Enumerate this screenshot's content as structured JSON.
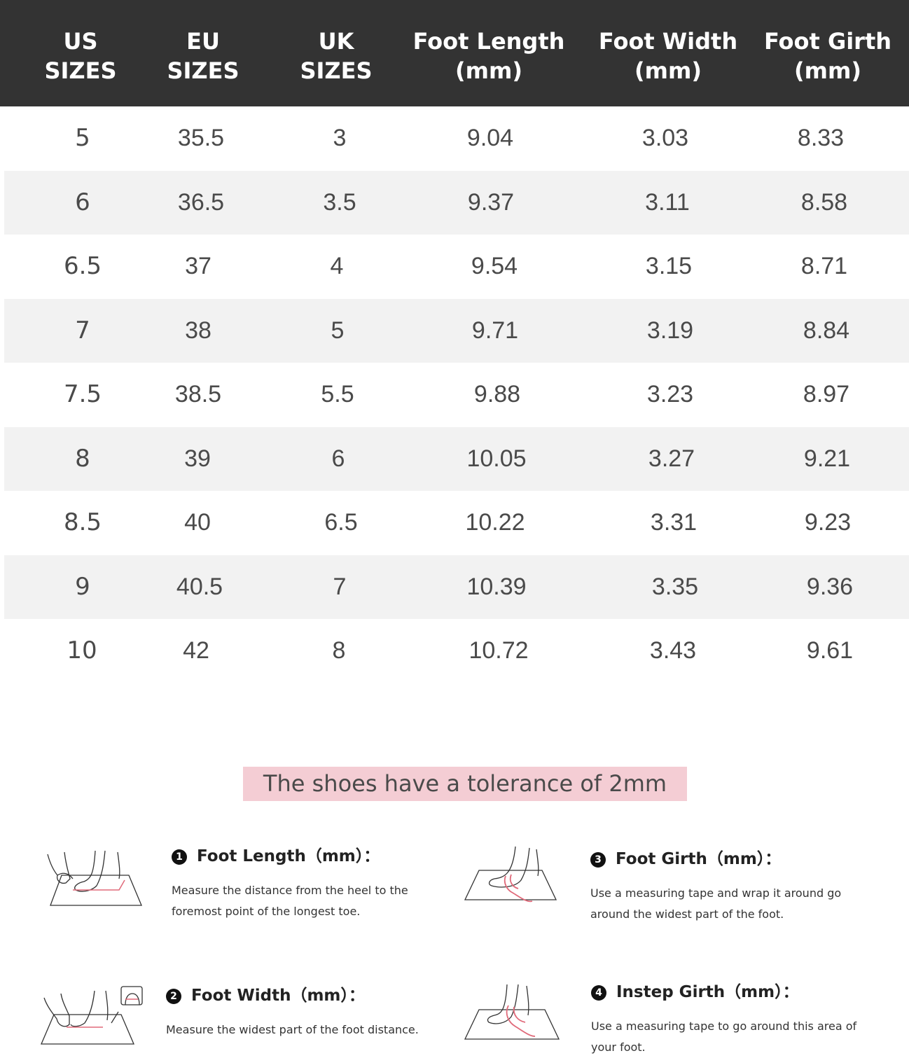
{
  "table": {
    "headers": [
      {
        "line1": "US",
        "line2": "SIZES"
      },
      {
        "line1": "EU",
        "line2": "SIZES"
      },
      {
        "line1": "UK",
        "line2": "SIZES"
      },
      {
        "line1": "Foot Length",
        "line2": "(mm)"
      },
      {
        "line1": "Foot Width",
        "line2": "(mm)"
      },
      {
        "line1": "Foot Girth",
        "line2": "(mm)"
      }
    ],
    "rows": [
      [
        "5",
        "35.5",
        "3",
        "9.04",
        "3.03",
        "8.33"
      ],
      [
        "6",
        "36.5",
        "3.5",
        "9.37",
        "3.11",
        "8.58"
      ],
      [
        "6.5",
        "37",
        "4",
        "9.54",
        "3.15",
        "8.71"
      ],
      [
        "7",
        "38",
        "5",
        "9.71",
        "3.19",
        "8.84"
      ],
      [
        "7.5",
        "38.5",
        "5.5",
        "9.88",
        "3.23",
        "8.97"
      ],
      [
        "8",
        "39",
        "6",
        "10.05",
        "3.27",
        "9.21"
      ],
      [
        "8.5",
        "40",
        "6.5",
        "10.22",
        "3.31",
        "9.23"
      ],
      [
        "9",
        "40.5",
        "7",
        "10.39",
        "3.35",
        "9.36"
      ],
      [
        "10",
        "42",
        "8",
        "10.72",
        "3.43",
        "9.61"
      ]
    ]
  },
  "tolerance_note": "The shoes have a tolerance of 2mm",
  "guides": [
    {
      "badge": "1",
      "title": "Foot Length（mm）：",
      "text": "Measure the distance from the heel to the foremost point of the longest toe.",
      "icon": "foot-length-illustration-icon"
    },
    {
      "badge": "2",
      "title": "Foot Width（mm）：",
      "text": "Measure the widest part of the foot distance.",
      "icon": "foot-width-illustration-icon"
    },
    {
      "badge": "3",
      "title": "Foot Girth（mm）：",
      "text": "Use a measuring tape and wrap it around go around the widest part of the foot.",
      "icon": "foot-girth-illustration-icon"
    },
    {
      "badge": "4",
      "title": "Instep Girth（mm）：",
      "text": "Use a measuring tape to go around this area of your foot.",
      "icon": "instep-girth-illustration-icon"
    }
  ],
  "colors": {
    "header_bg": "#333333",
    "stripe_bg": "#f2f2f2",
    "tolerance_bg": "#f4cdd4",
    "tape": "#e06a7a"
  }
}
